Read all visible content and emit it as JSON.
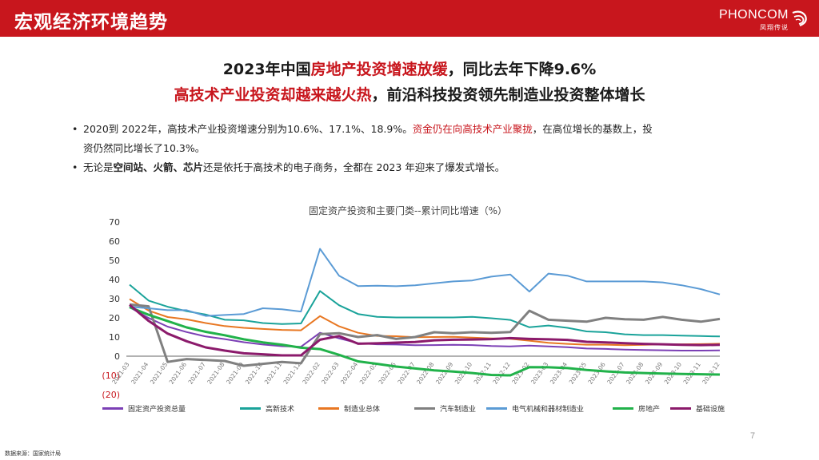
{
  "header": {
    "title": "宏观经济环境趋势",
    "logo_text": "PHONCOM",
    "logo_sub": "凤翔传说"
  },
  "headline": {
    "line1": {
      "pre": "2023年中国",
      "red": "房地产投资增速放缓",
      "post": "，同比去年下降9.6%"
    },
    "line2": {
      "red": "高技术产业投资却越来越火热",
      "post": "，前沿科技投资领先制造业投资整体增长"
    }
  },
  "bullets": [
    {
      "part1": "2020到 2022年，高技术产业投资增速分别为10.6%、17.1%、18.9%。",
      "red": "资金仍在向高技术产业聚拢",
      "part2": "，在高位增长的基数上，投",
      "part3": "资仍然同比增长了10.3%。"
    },
    {
      "pre": "无论是",
      "bold": "空间站、火箭、芯片",
      "post": "还是依托于高技术的电子商务，全都在 2023 年迎来了爆发式增长。"
    }
  ],
  "chart_data": {
    "type": "line",
    "title": "固定资产投资和主要门类--累计同比增速（%）",
    "ylim": [
      -20,
      70
    ],
    "yticks": [
      "70",
      "60",
      "50",
      "40",
      "30",
      "20",
      "10",
      "0",
      "(10)",
      "(20)"
    ],
    "x": [
      "2021-03",
      "2021-04",
      "2021-05",
      "2021-06",
      "2021-07",
      "2021-08",
      "2021-09",
      "2021-10",
      "2021-11",
      "2021-12",
      "2022-02",
      "2022-03",
      "2022-04",
      "2022-05",
      "2022-06",
      "2022-07",
      "2022-08",
      "2022-09",
      "2022-10",
      "2022-11",
      "2022-12",
      "2023-02",
      "2023-03",
      "2023-04",
      "2023-05",
      "2023-06",
      "2023-07",
      "2023-08",
      "2023-09",
      "2023-10",
      "2023-11",
      "2023-12"
    ],
    "xlabels": [
      "2021-03",
      "2021-04",
      "2021-05",
      "2021-06",
      "2021-07",
      "2021-08",
      "2021-09",
      "2021-10",
      "2021-11",
      "2021-12",
      "2022-02",
      "2022-03",
      "2022-04",
      "2022-05",
      "2022-06",
      "2022-07",
      "2022-08",
      "2022-09",
      "2022-10",
      "2022-11",
      "2022-12",
      "2023-02",
      "2023-03",
      "2023-04",
      "2023-05",
      "2023-06",
      "2023-07",
      "2023-08",
      "2023-09",
      "2023-10",
      "2023-11",
      "2023-12"
    ],
    "series": [
      {
        "name": "固定资产投资总量",
        "color": "#7b3fb5",
        "values": [
          25.6,
          19.9,
          15.4,
          12.6,
          10.3,
          8.9,
          7.3,
          6.1,
          5.2,
          4.9,
          12.2,
          9.3,
          6.8,
          6.2,
          6.1,
          5.7,
          5.8,
          5.9,
          5.8,
          5.3,
          5.1,
          5.5,
          5.1,
          4.7,
          4.0,
          3.8,
          3.4,
          3.2,
          3.1,
          2.9,
          2.9,
          3.0
        ]
      },
      {
        "name": "高新技术",
        "color": "#1aa39a",
        "values": [
          37.3,
          29.0,
          25.8,
          23.5,
          21.7,
          19.0,
          18.7,
          17.3,
          16.8,
          17.1,
          34.0,
          26.6,
          22.0,
          20.5,
          20.2,
          20.2,
          20.2,
          20.2,
          20.5,
          19.8,
          18.9,
          15.1,
          16.0,
          14.8,
          12.9,
          12.5,
          11.4,
          11.0,
          11.0,
          10.7,
          10.5,
          10.3
        ]
      },
      {
        "name": "制造业总体",
        "color": "#e87722",
        "values": [
          29.8,
          23.8,
          20.4,
          19.2,
          17.3,
          15.7,
          14.8,
          14.2,
          13.7,
          13.5,
          20.9,
          15.6,
          12.2,
          10.6,
          10.4,
          9.9,
          10.0,
          10.1,
          9.7,
          9.3,
          9.1,
          8.1,
          7.0,
          6.4,
          6.0,
          6.0,
          5.7,
          5.9,
          6.2,
          6.2,
          6.3,
          6.5
        ]
      },
      {
        "name": "汽车制造业",
        "color": "#808080",
        "values": [
          27.0,
          26.0,
          -3.0,
          -1.5,
          -2.0,
          -2.5,
          -5.0,
          -4.0,
          -3.0,
          -3.7,
          11.5,
          12.0,
          10.0,
          11.0,
          9.0,
          10.0,
          12.5,
          12.0,
          12.5,
          12.2,
          12.6,
          23.7,
          19.0,
          18.5,
          18.0,
          20.0,
          19.3,
          19.0,
          20.5,
          19.0,
          18.0,
          19.4
        ]
      },
      {
        "name": "电气机械和器材制造业",
        "color": "#5b9bd5",
        "values": [
          25.8,
          25.0,
          24.0,
          24.0,
          21.0,
          21.5,
          22.0,
          25.0,
          24.5,
          23.3,
          56.0,
          42.0,
          36.6,
          36.8,
          36.5,
          37.0,
          38.0,
          39.0,
          39.5,
          41.5,
          42.6,
          33.7,
          43.1,
          42.0,
          39.0,
          39.0,
          39.0,
          39.0,
          38.5,
          37.0,
          35.0,
          32.2
        ]
      },
      {
        "name": "房地产",
        "color": "#21b24a",
        "values": [
          25.6,
          21.6,
          18.3,
          15.0,
          12.7,
          10.9,
          8.8,
          7.2,
          6.0,
          4.4,
          3.7,
          0.7,
          -2.7,
          -4.0,
          -5.4,
          -6.4,
          -7.4,
          -8.0,
          -8.8,
          -9.8,
          -10.0,
          -5.7,
          -5.8,
          -6.2,
          -7.2,
          -7.9,
          -8.5,
          -8.8,
          -9.1,
          -9.3,
          -9.4,
          -9.6
        ]
      },
      {
        "name": "基础设施",
        "color": "#8b1a6b",
        "values": [
          26.8,
          18.4,
          11.8,
          7.8,
          4.6,
          2.9,
          1.5,
          1.0,
          0.4,
          0.4,
          8.6,
          10.5,
          6.5,
          6.7,
          7.1,
          7.4,
          8.3,
          8.6,
          8.7,
          8.9,
          9.4,
          9.0,
          8.8,
          8.5,
          7.5,
          7.2,
          6.8,
          6.4,
          6.2,
          5.9,
          5.8,
          5.9
        ]
      }
    ],
    "grid": false,
    "legend": "bottom"
  },
  "source": "数据来源：国家统计局",
  "page_number": "7"
}
